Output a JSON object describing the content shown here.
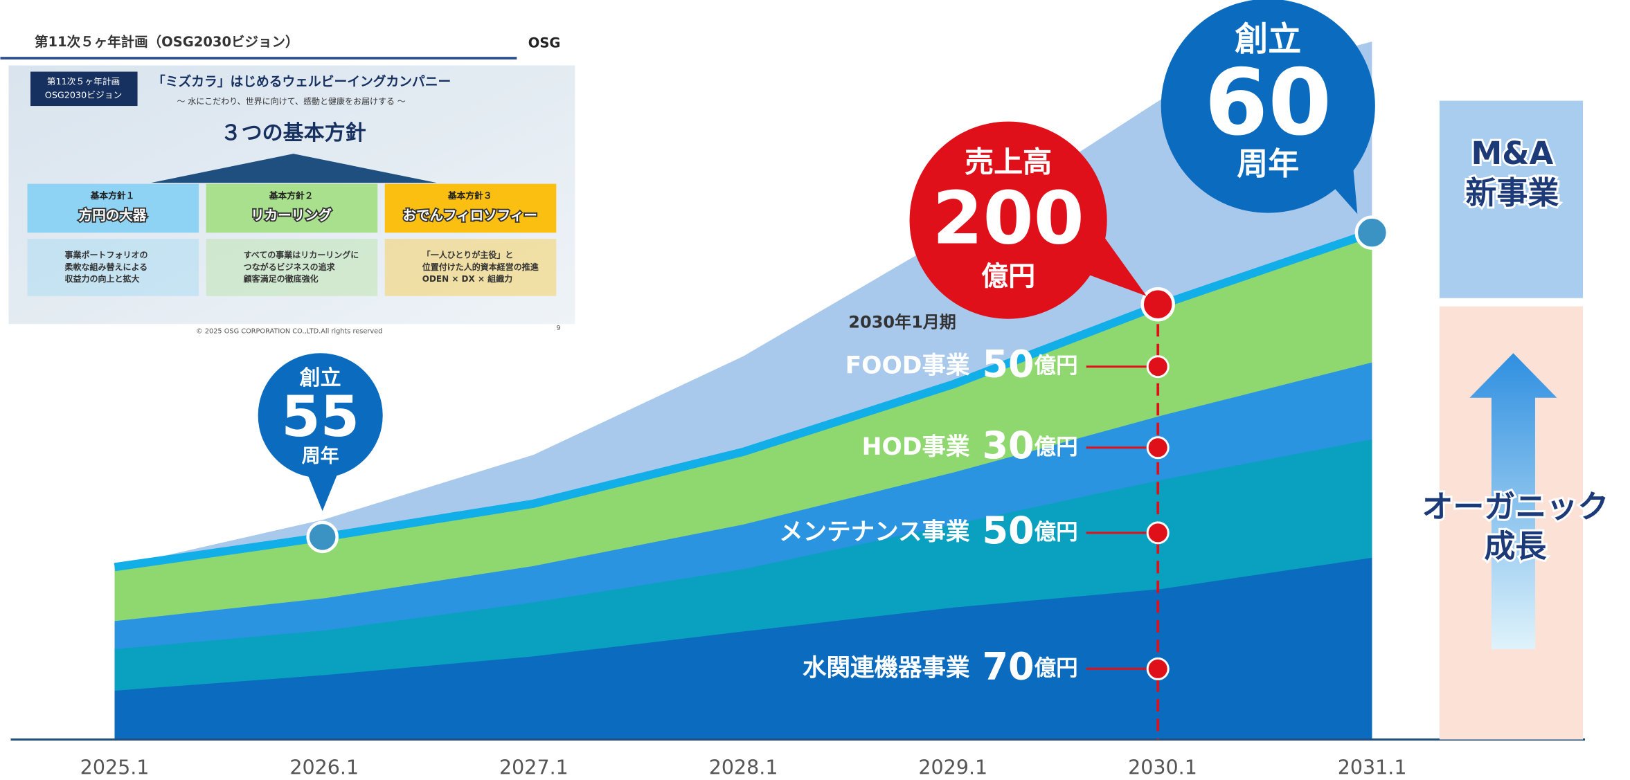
{
  "inset": {
    "header": "第11次５ヶ年計画（OSG2030ビジョン）",
    "logo": "OSG",
    "badge": [
      "第11次５ヶ年計画",
      "OSG2030ビジョン"
    ],
    "tagline": "「ミズカラ」はじめるウェルビーイングカンパニー",
    "subtitle": "～ 水にこだわり、世界に向けて、感動と健康をお届けする ～",
    "heading": "３つの基本方針",
    "policies": [
      {
        "label": "基本方針１",
        "name": "方円の大器",
        "lines": [
          "事業ポートフォリオの",
          "柔軟な組み替えによる",
          "収益力の向上と拡大"
        ]
      },
      {
        "label": "基本方針２",
        "name": "リカーリング",
        "lines": [
          "すべての事業はリカーリングに",
          "つながるビジネスの追求",
          "顧客満足の徹底強化"
        ]
      },
      {
        "label": "基本方針３",
        "name": "おでんフィロソフィー",
        "lines": [
          "「一人ひとりが主役」と",
          "位置付けた人的資本経営の推進",
          "ODEN × DX × 組織力"
        ]
      }
    ],
    "copyright": "© 2025 OSG CORPORATION CO.,LTD.All rights reserved",
    "page": "9"
  },
  "bubbles": [
    {
      "top": "創立",
      "big": "55",
      "bottom": "周年"
    },
    {
      "top": "売上高",
      "big": "200",
      "bottom": "億円"
    },
    {
      "top": "創立",
      "big": "60",
      "bottom": "周年"
    }
  ],
  "period": "2030年1月期",
  "segments": [
    {
      "name": "FOOD事業",
      "value": 50,
      "unit": "億円"
    },
    {
      "name": "HOD事業",
      "value": 30,
      "unit": "億円"
    },
    {
      "name": "メンテナンス事業",
      "value": 50,
      "unit": "億円"
    },
    {
      "name": "水関連機器事業",
      "value": 70,
      "unit": "億円"
    }
  ],
  "x_labels": [
    "2025.1",
    "2026.1",
    "2027.1",
    "2028.1",
    "2029.1",
    "2030.1",
    "2031.1"
  ],
  "new_business": [
    "M&A",
    "新事業"
  ],
  "organic": [
    "オーガニック",
    "成長"
  ]
}
